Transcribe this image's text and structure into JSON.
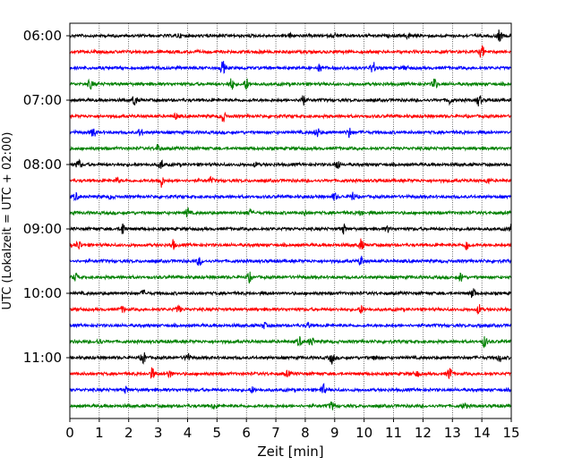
{
  "chart_data": {
    "type": "line",
    "title": "",
    "xlabel": "Zeit  [min]",
    "ylabel": "UTC (Lokalzeit = UTC + 02:00)",
    "xlim": [
      0,
      15
    ],
    "x_ticks": [
      "0",
      "1",
      "2",
      "3",
      "4",
      "5",
      "6",
      "7",
      "8",
      "9",
      "10",
      "11",
      "12",
      "13",
      "14",
      "15"
    ],
    "y_tick_labels": [
      "06:00",
      "07:00",
      "08:00",
      "09:00",
      "10:00",
      "11:00"
    ],
    "trace_interval_min": 15,
    "grid_x": true,
    "colors_cycle": [
      "#000000",
      "#ff0000",
      "#0000ff",
      "#008000"
    ],
    "series": [
      {
        "start": "06:00",
        "color": "#000000",
        "spikes": [
          [
            3.7,
            2
          ],
          [
            7.5,
            2
          ],
          [
            9,
            2
          ],
          [
            11.5,
            3
          ],
          [
            14.6,
            6
          ]
        ]
      },
      {
        "start": "06:15",
        "color": "#ff0000",
        "spikes": [
          [
            6.5,
            2
          ],
          [
            14,
            7
          ]
        ]
      },
      {
        "start": "06:30",
        "color": "#0000ff",
        "spikes": [
          [
            5.2,
            7
          ],
          [
            8.5,
            4
          ],
          [
            10.3,
            7
          ],
          [
            11.4,
            2
          ]
        ]
      },
      {
        "start": "06:45",
        "color": "#008000",
        "spikes": [
          [
            0.7,
            5
          ],
          [
            5.5,
            6
          ],
          [
            6,
            6
          ],
          [
            12.4,
            6
          ]
        ]
      },
      {
        "start": "07:00",
        "color": "#000000",
        "spikes": [
          [
            2.2,
            6
          ],
          [
            7.9,
            7
          ],
          [
            12.9,
            4
          ],
          [
            13.9,
            6
          ]
        ]
      },
      {
        "start": "07:15",
        "color": "#ff0000",
        "spikes": [
          [
            3.6,
            3
          ],
          [
            5.2,
            6
          ]
        ]
      },
      {
        "start": "07:30",
        "color": "#0000ff",
        "spikes": [
          [
            0.8,
            5
          ],
          [
            2.4,
            4
          ],
          [
            8.4,
            5
          ],
          [
            9.5,
            5
          ]
        ]
      },
      {
        "start": "07:45",
        "color": "#008000",
        "spikes": [
          [
            3,
            4
          ]
        ]
      },
      {
        "start": "08:00",
        "color": "#000000",
        "spikes": [
          [
            0.3,
            5
          ],
          [
            3.1,
            5
          ],
          [
            6.3,
            2
          ],
          [
            9.1,
            6
          ]
        ]
      },
      {
        "start": "08:15",
        "color": "#ff0000",
        "spikes": [
          [
            1.6,
            3
          ],
          [
            3.1,
            7
          ],
          [
            4.8,
            3
          ],
          [
            14.2,
            3
          ]
        ]
      },
      {
        "start": "08:30",
        "color": "#0000ff",
        "spikes": [
          [
            0.2,
            4
          ],
          [
            1.4,
            2
          ],
          [
            9,
            4
          ],
          [
            9.6,
            5
          ]
        ]
      },
      {
        "start": "08:45",
        "color": "#008000",
        "spikes": [
          [
            4,
            5
          ],
          [
            6.1,
            3
          ],
          [
            8,
            2
          ],
          [
            9.9,
            3
          ]
        ]
      },
      {
        "start": "09:00",
        "color": "#000000",
        "spikes": [
          [
            1.8,
            7
          ],
          [
            9.3,
            5
          ],
          [
            10.8,
            3
          ],
          [
            15,
            5
          ]
        ]
      },
      {
        "start": "09:15",
        "color": "#ff0000",
        "spikes": [
          [
            0.3,
            5
          ],
          [
            3.5,
            5
          ],
          [
            9.9,
            6
          ],
          [
            13.5,
            6
          ]
        ]
      },
      {
        "start": "09:30",
        "color": "#0000ff",
        "spikes": [
          [
            4.4,
            5
          ],
          [
            9.9,
            5
          ]
        ]
      },
      {
        "start": "09:45",
        "color": "#008000",
        "spikes": [
          [
            0.2,
            4
          ],
          [
            6.1,
            5
          ],
          [
            13.3,
            5
          ]
        ]
      },
      {
        "start": "10:00",
        "color": "#000000",
        "spikes": [
          [
            2.5,
            3
          ],
          [
            13.7,
            6
          ]
        ]
      },
      {
        "start": "10:15",
        "color": "#ff0000",
        "spikes": [
          [
            1.8,
            3
          ],
          [
            3.7,
            4
          ],
          [
            9.9,
            4
          ],
          [
            13.9,
            5
          ]
        ]
      },
      {
        "start": "10:30",
        "color": "#0000ff",
        "spikes": [
          [
            6.6,
            3
          ],
          [
            8.1,
            3
          ],
          [
            13.9,
            2
          ]
        ]
      },
      {
        "start": "10:45",
        "color": "#008000",
        "spikes": [
          [
            1,
            3
          ],
          [
            7.8,
            5
          ],
          [
            8.2,
            5
          ],
          [
            14.1,
            6
          ]
        ]
      },
      {
        "start": "11:00",
        "color": "#000000",
        "spikes": [
          [
            2.5,
            6
          ],
          [
            4,
            5
          ],
          [
            8.9,
            6
          ],
          [
            10.4,
            3
          ],
          [
            14.6,
            4
          ]
        ]
      },
      {
        "start": "11:15",
        "color": "#ff0000",
        "spikes": [
          [
            2.8,
            6
          ],
          [
            3.4,
            4
          ],
          [
            7.4,
            3
          ],
          [
            11.8,
            3
          ],
          [
            12.9,
            7
          ]
        ]
      },
      {
        "start": "11:30",
        "color": "#0000ff",
        "spikes": [
          [
            1.9,
            3
          ],
          [
            6.2,
            3
          ],
          [
            8.6,
            6
          ]
        ]
      },
      {
        "start": "11:45",
        "color": "#008000",
        "spikes": [
          [
            4.9,
            3
          ],
          [
            8.9,
            4
          ],
          [
            13.4,
            3
          ]
        ]
      }
    ]
  }
}
